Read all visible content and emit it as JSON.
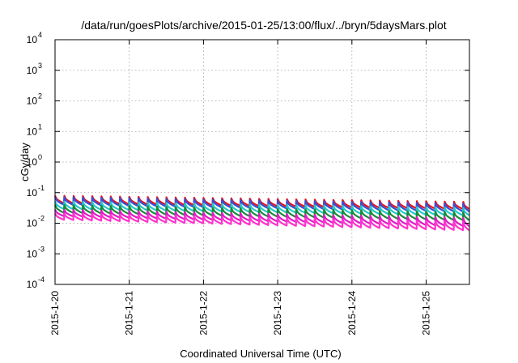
{
  "chart_data": {
    "type": "line",
    "title": "/data/run/goesPlots/archive/2015-01-25/13:00/flux/../bryn/5daysMars.plot",
    "xlabel": "Coordinated Universal Time (UTC)",
    "ylabel": "cGy/day",
    "y_scale": "log",
    "ylim": [
      0.0001,
      10000
    ],
    "y_ticks": [
      {
        "base": "10",
        "exp": "4",
        "value": 10000
      },
      {
        "base": "10",
        "exp": "3",
        "value": 1000
      },
      {
        "base": "10",
        "exp": "2",
        "value": 100
      },
      {
        "base": "10",
        "exp": "1",
        "value": 10
      },
      {
        "base": "10",
        "exp": "0",
        "value": 1
      },
      {
        "base": "10",
        "exp": "-1",
        "value": 0.1
      },
      {
        "base": "10",
        "exp": "-2",
        "value": 0.01
      },
      {
        "base": "10",
        "exp": "-3",
        "value": 0.001
      },
      {
        "base": "10",
        "exp": "-4",
        "value": 0.0001
      }
    ],
    "xlim": [
      "2015-01-20 00:00",
      "2015-01-25 14:00"
    ],
    "x_ticks": [
      "2015-1-20",
      "2015-1-21",
      "2015-1-22",
      "2015-1-23",
      "2015-1-24",
      "2015-1-25"
    ],
    "grid": true,
    "sawtooth_period_hours": 3,
    "series": [
      {
        "color": "#e8141c",
        "peak_start": 0.08,
        "peak_end": 0.05,
        "trough_start": 0.045,
        "trough_end": 0.029
      },
      {
        "color": "#3a4fd8",
        "peak_start": 0.072,
        "peak_end": 0.044,
        "trough_start": 0.04,
        "trough_end": 0.024
      },
      {
        "color": "#25c8c8",
        "peak_start": 0.052,
        "peak_end": 0.032,
        "trough_start": 0.029,
        "trough_end": 0.018
      },
      {
        "color": "#1a8a3a",
        "peak_start": 0.04,
        "peak_end": 0.023,
        "trough_start": 0.022,
        "trough_end": 0.0125
      },
      {
        "color": "#e01ac8",
        "peak_start": 0.028,
        "peak_end": 0.015,
        "trough_start": 0.017,
        "trough_end": 0.008
      },
      {
        "color": "#ff33cc",
        "peak_start": 0.021,
        "peak_end": 0.011,
        "trough_start": 0.013,
        "trough_end": 0.0058
      }
    ]
  }
}
